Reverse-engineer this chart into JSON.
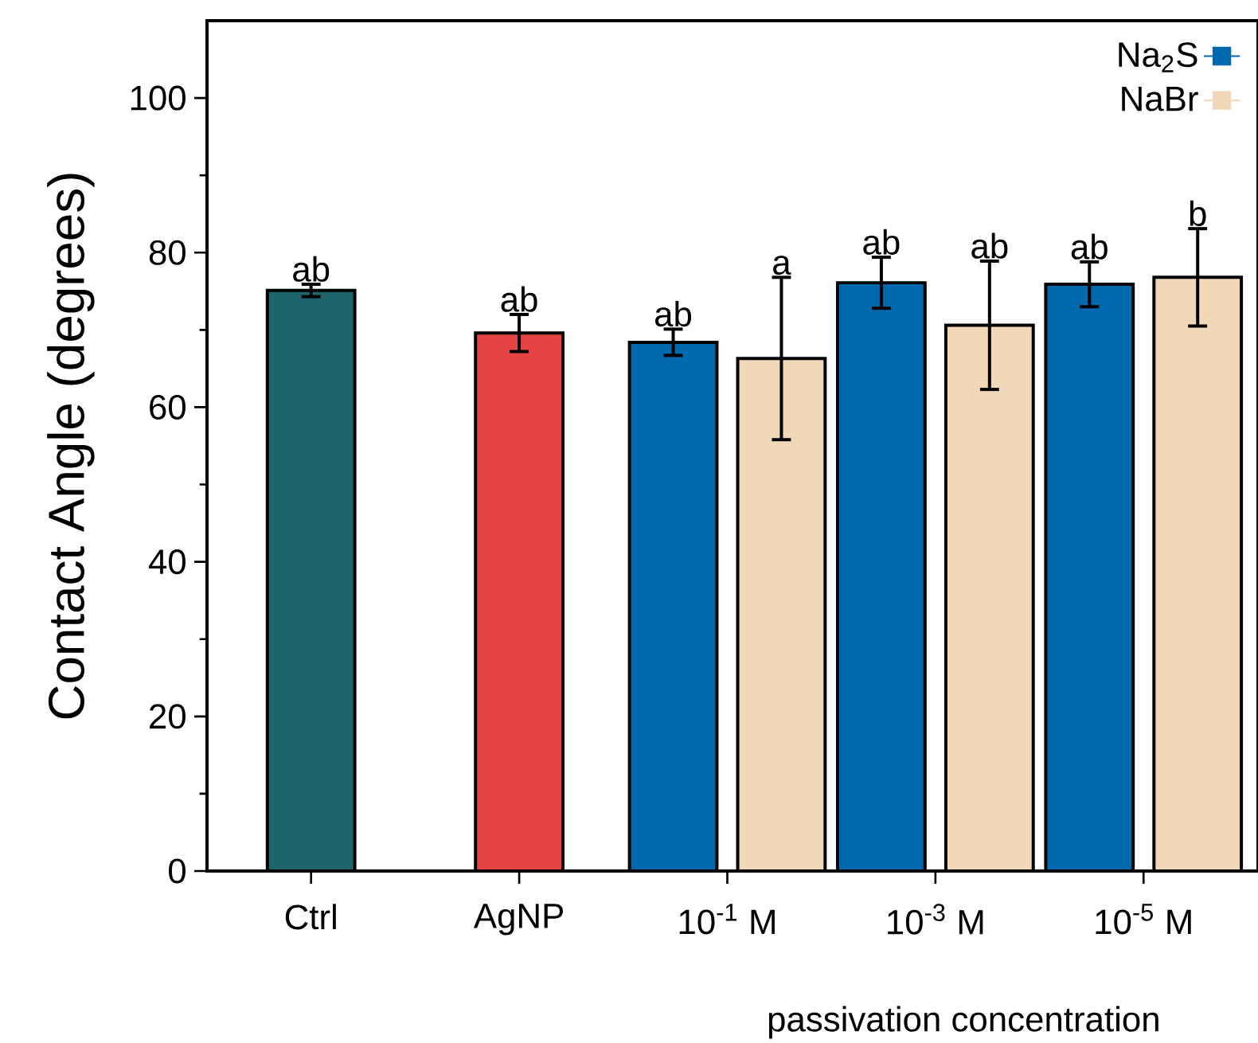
{
  "chart_data": {
    "type": "bar",
    "categories": [
      "Ctrl",
      "AgNP",
      "10$^{-1}$ M",
      "10$^{-3}$ M",
      "10$^{-5}$ M"
    ],
    "series": [
      {
        "colors": [
          "#1f636b",
          "#e64444",
          null,
          null,
          null
        ],
        "values": [
          75.1,
          69.6,
          null,
          null,
          null
        ],
        "errors": [
          0.8,
          2.4,
          null,
          null,
          null
        ]
      },
      {
        "name": "Na$_{2}$S",
        "color": "#0068ad",
        "values": [
          null,
          null,
          68.4,
          76.1,
          75.9
        ],
        "errors": [
          null,
          null,
          1.7,
          3.3,
          2.9
        ]
      },
      {
        "name": "NaBr",
        "color": "#f0d8b8",
        "values": [
          null,
          null,
          66.3,
          70.6,
          76.8
        ],
        "errors": [
          null,
          null,
          10.5,
          8.3,
          6.3
        ]
      }
    ],
    "ylabel": "Contact Angle (degrees)",
    "xlabel": "passivation concentration",
    "ylim": [
      0,
      110
    ],
    "yticks": [
      0,
      20,
      40,
      60,
      80,
      100
    ],
    "legend": "top right",
    "annotations": [
      "ab",
      "ab",
      "ab",
      "a",
      "ab",
      "ab",
      "ab",
      "b"
    ]
  }
}
